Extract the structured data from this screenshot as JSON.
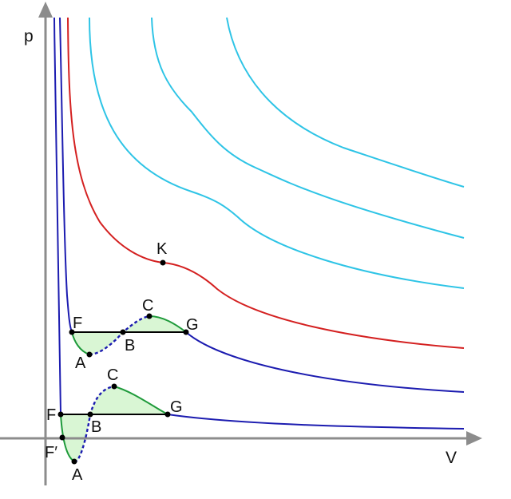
{
  "axes": {
    "y_label": "p",
    "x_label": "V",
    "axis_color": "#8c8c8c"
  },
  "colors": {
    "cyan_isotherm": "#2ec4e6",
    "critical_isotherm": "#d42020",
    "subcritical_isotherm": "#1c1cb0",
    "stable_branch": "#1e9a3a",
    "fill_area": "#d9f6d4",
    "tie_line": "#000000",
    "point": "#000000"
  },
  "labels": {
    "critical_point": "K",
    "upper": {
      "F": "F",
      "A": "A",
      "B": "B",
      "C": "C",
      "G": "G"
    },
    "lower": {
      "F": "F",
      "F_prime": "F′",
      "A": "A",
      "B": "B",
      "C": "C",
      "G": "G"
    }
  }
}
